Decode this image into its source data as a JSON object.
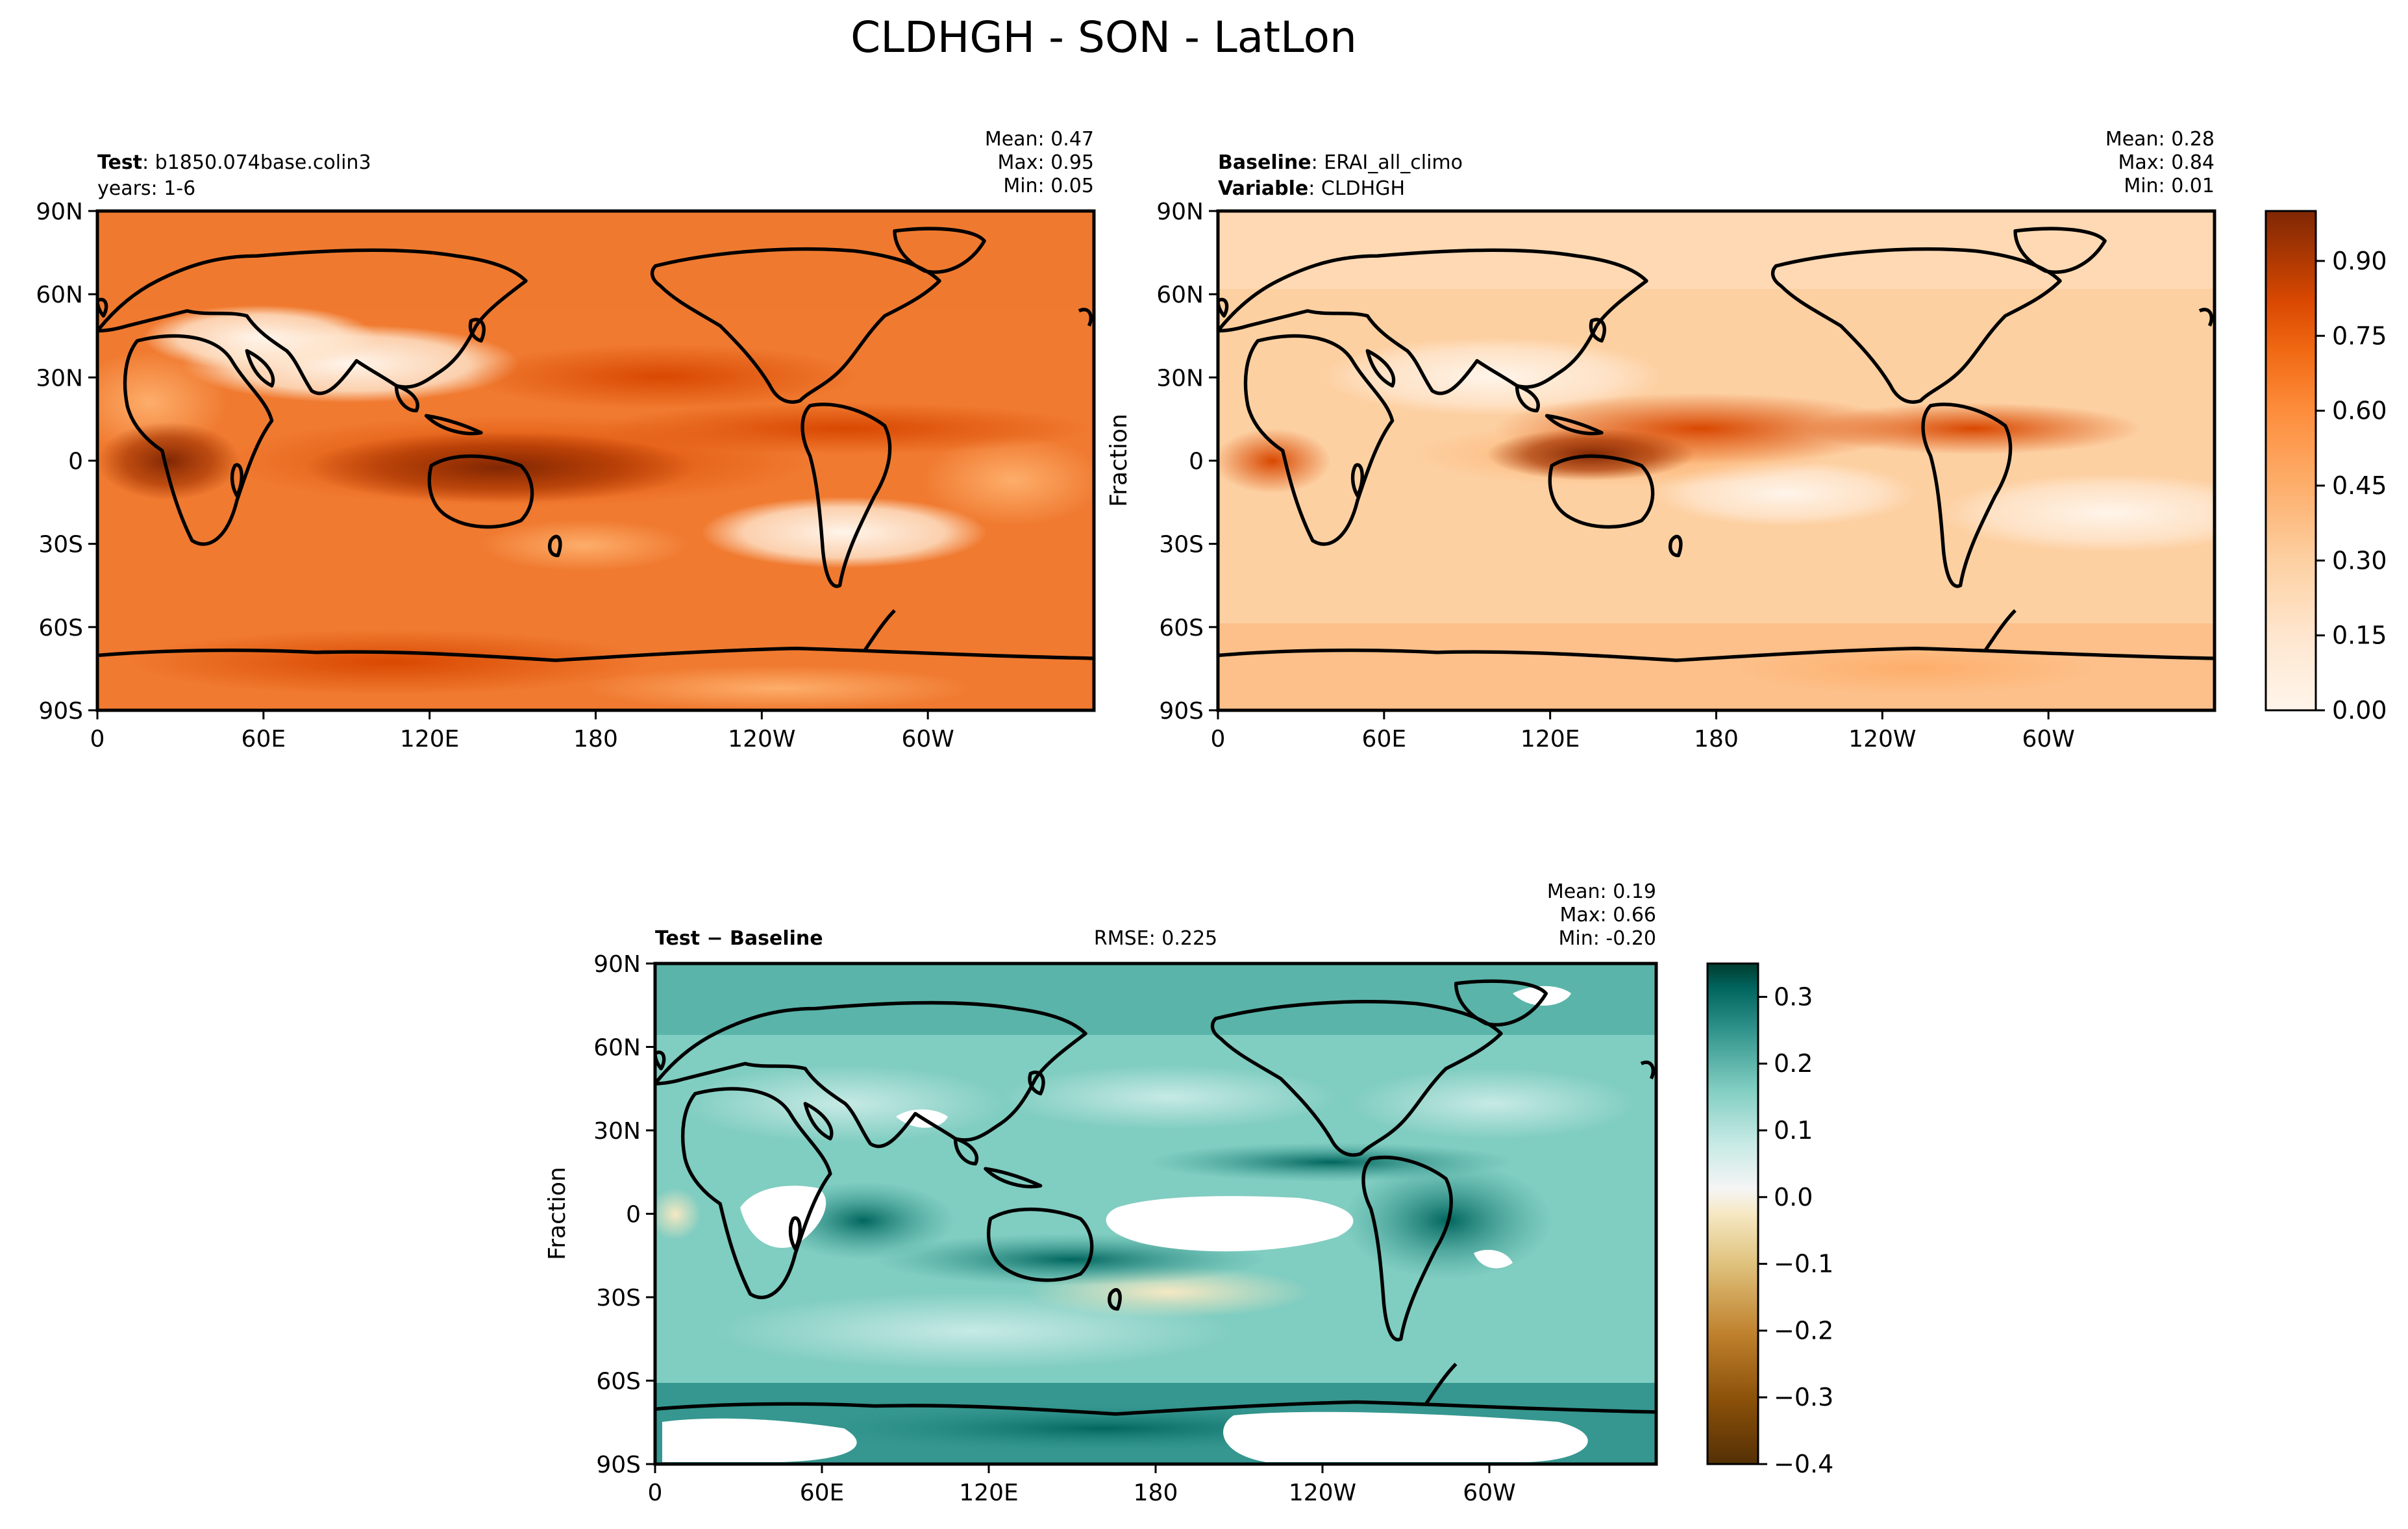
{
  "figure": {
    "title": "CLDHGH - SON - LatLon"
  },
  "colors": {
    "seq_scale": [
      "#fff5eb",
      "#fee6ce",
      "#fdd0a2",
      "#fdae6b",
      "#fd8d3c",
      "#f16913",
      "#d94801",
      "#a63603",
      "#7f2704"
    ],
    "div_scale": [
      "#543005",
      "#8c510a",
      "#bf812d",
      "#dfc27d",
      "#f6e8c3",
      "#f5f5f5",
      "#c7eae5",
      "#80cdc1",
      "#35978f",
      "#01665e",
      "#003c30"
    ],
    "land_outline": "#000000"
  },
  "axes": {
    "lon_ticks": [
      "0",
      "60E",
      "120E",
      "180",
      "120W",
      "60W"
    ],
    "lat_ticks": [
      "90N",
      "60N",
      "30N",
      "0",
      "30S",
      "60S",
      "90S"
    ]
  },
  "panels": {
    "test": {
      "label_bold": "Test",
      "label_text": ": b1850.074base.colin3",
      "line2": "years: 1-6",
      "stats": [
        "Mean:  0.47",
        "Max:  0.95",
        "Min:  0.05"
      ],
      "ylabel": ""
    },
    "baseline": {
      "label_bold": "Baseline",
      "label_text": ": ERAI_all_climo",
      "line2_bold": "Variable",
      "line2_text": ": CLDHGH",
      "stats": [
        "Mean:  0.28",
        "Max:  0.84",
        "Min:  0.01"
      ],
      "ylabel": "Fraction"
    },
    "diff": {
      "label_bold": "Test − Baseline",
      "rmse": "RMSE: 0.225",
      "stats": [
        "Mean:  0.19",
        "Max:  0.66",
        "Min: -0.20"
      ],
      "ylabel": "Fraction"
    }
  },
  "colorbars": {
    "seq_ticks": [
      "0.00",
      "0.15",
      "0.30",
      "0.45",
      "0.60",
      "0.75",
      "0.90"
    ],
    "div_ticks": [
      "0.3",
      "0.2",
      "0.1",
      "0.0",
      "−0.1",
      "−0.2",
      "−0.3",
      "−0.4"
    ]
  },
  "chart_data": [
    {
      "type": "heatmap",
      "title": "Test: b1850.074base.colin3",
      "xlabel": "",
      "ylabel": "",
      "x_ticks": [
        "0",
        "60E",
        "120E",
        "180",
        "120W",
        "60W"
      ],
      "y_ticks": [
        "90N",
        "60N",
        "30N",
        "0",
        "30S",
        "60S",
        "90S"
      ],
      "xlim": [
        0,
        360
      ],
      "ylim": [
        -90,
        90
      ],
      "stats": {
        "mean": 0.47,
        "max": 0.95,
        "min": 0.05
      },
      "colorbar": {
        "range": [
          0.0,
          1.0
        ],
        "ticks": [
          0.0,
          0.15,
          0.3,
          0.45,
          0.6,
          0.75,
          0.9
        ]
      }
    },
    {
      "type": "heatmap",
      "title": "Baseline: ERAI_all_climo",
      "xlabel": "",
      "ylabel": "Fraction",
      "x_ticks": [
        "0",
        "60E",
        "120E",
        "180",
        "120W",
        "60W"
      ],
      "y_ticks": [
        "90N",
        "60N",
        "30N",
        "0",
        "30S",
        "60S",
        "90S"
      ],
      "xlim": [
        0,
        360
      ],
      "ylim": [
        -90,
        90
      ],
      "stats": {
        "mean": 0.28,
        "max": 0.84,
        "min": 0.01
      },
      "colorbar": {
        "range": [
          0.0,
          1.0
        ],
        "ticks": [
          0.0,
          0.15,
          0.3,
          0.45,
          0.6,
          0.75,
          0.9
        ]
      }
    },
    {
      "type": "heatmap",
      "title": "Test − Baseline",
      "xlabel": "",
      "ylabel": "Fraction",
      "x_ticks": [
        "0",
        "60E",
        "120E",
        "180",
        "120W",
        "60W"
      ],
      "y_ticks": [
        "90N",
        "60N",
        "30N",
        "0",
        "30S",
        "60S",
        "90S"
      ],
      "xlim": [
        0,
        360
      ],
      "ylim": [
        -90,
        90
      ],
      "rmse": 0.225,
      "stats": {
        "mean": 0.19,
        "max": 0.66,
        "min": -0.2
      },
      "colorbar": {
        "range": [
          -0.4,
          0.35
        ],
        "ticks": [
          0.3,
          0.2,
          0.1,
          0.0,
          -0.1,
          -0.2,
          -0.3,
          -0.4
        ]
      }
    }
  ]
}
